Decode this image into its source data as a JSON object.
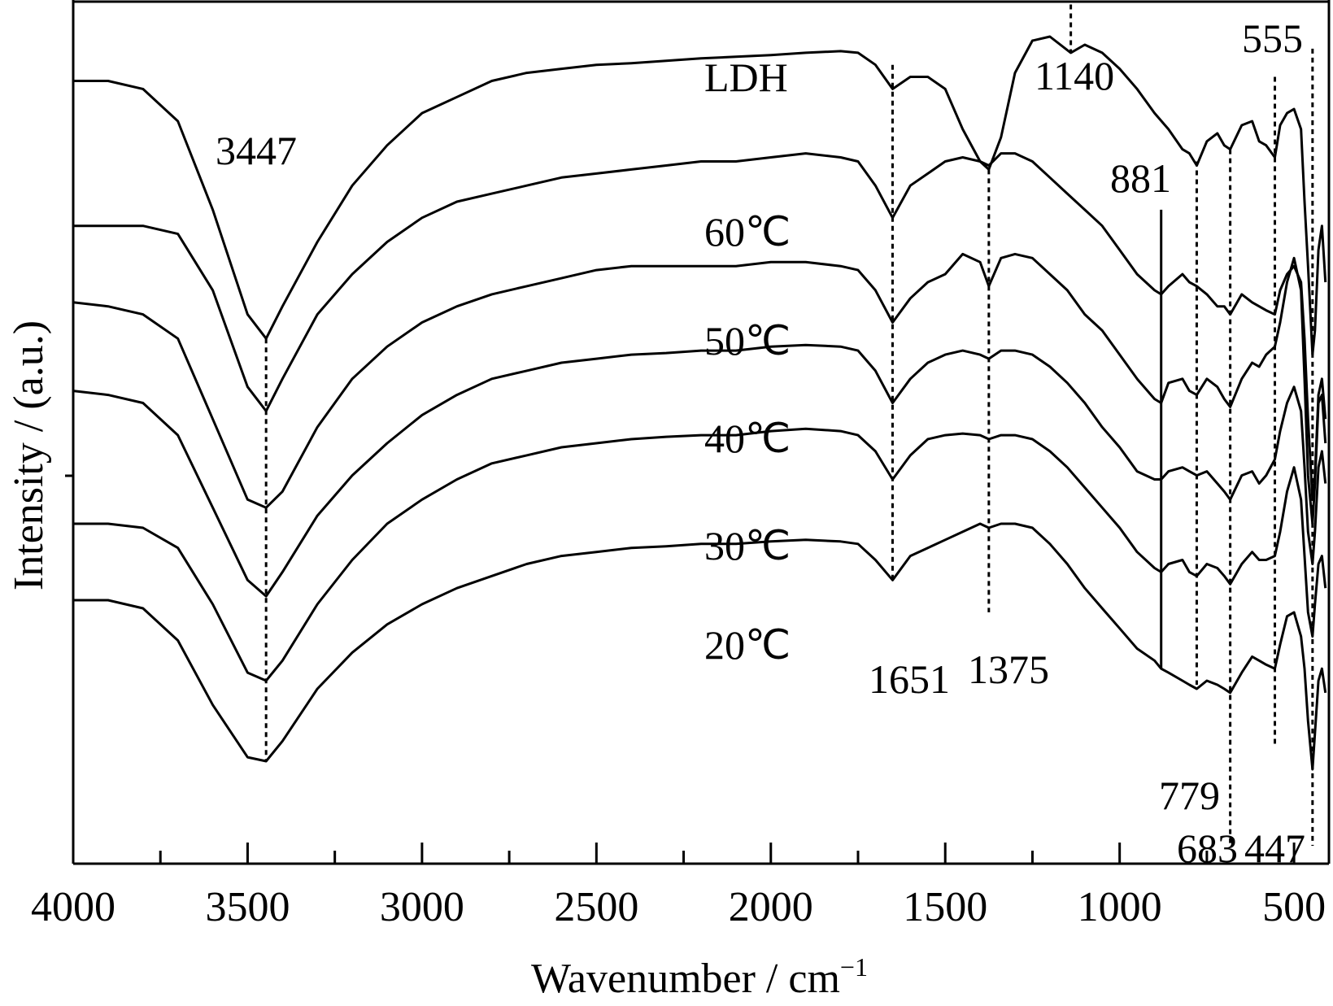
{
  "chart_data": {
    "type": "line",
    "xlabel": "Wavenumber / cm",
    "xlabel_sup": "−1",
    "ylabel": "Intensity / (a.u.)",
    "xlim": [
      4000,
      400
    ],
    "x_ticks": [
      "4000",
      "3500",
      "3000",
      "2500",
      "2000",
      "1500",
      "1000",
      "500"
    ],
    "x_tick_values": [
      4000,
      3500,
      3000,
      2500,
      2000,
      1500,
      1000,
      500
    ],
    "y_units": "a.u. (curves vertically offset)",
    "series": [
      {
        "name": "LDH",
        "x": [
          4000,
          3900,
          3800,
          3700,
          3600,
          3500,
          3447,
          3400,
          3300,
          3200,
          3100,
          3000,
          2900,
          2800,
          2700,
          2600,
          2500,
          2400,
          2300,
          2200,
          2100,
          2000,
          1900,
          1800,
          1750,
          1700,
          1651,
          1600,
          1550,
          1500,
          1450,
          1400,
          1375,
          1340,
          1300,
          1250,
          1200,
          1140,
          1100,
          1050,
          1000,
          950,
          900,
          860,
          820,
          800,
          779,
          750,
          720,
          700,
          683,
          650,
          620,
          600,
          580,
          555,
          540,
          520,
          500,
          480,
          470,
          460,
          447,
          440,
          430,
          420,
          410
        ],
        "y": [
          9.5,
          9.5,
          9.4,
          9.0,
          7.9,
          6.6,
          6.3,
          6.7,
          7.5,
          8.2,
          8.7,
          9.1,
          9.3,
          9.5,
          9.6,
          9.65,
          9.7,
          9.72,
          9.75,
          9.78,
          9.8,
          9.82,
          9.85,
          9.87,
          9.85,
          9.7,
          9.4,
          9.55,
          9.55,
          9.4,
          8.9,
          8.5,
          8.4,
          8.8,
          9.6,
          10.0,
          10.05,
          9.85,
          9.95,
          9.85,
          9.65,
          9.4,
          9.1,
          8.9,
          8.65,
          8.6,
          8.45,
          8.75,
          8.85,
          8.7,
          8.65,
          8.95,
          9.0,
          8.75,
          8.7,
          8.55,
          8.95,
          9.1,
          9.15,
          8.9,
          8.0,
          7.2,
          6.1,
          6.4,
          7.4,
          7.7,
          7.0
        ]
      },
      {
        "name": "60℃",
        "x": [
          4000,
          3900,
          3800,
          3700,
          3600,
          3500,
          3447,
          3400,
          3300,
          3200,
          3100,
          3000,
          2900,
          2800,
          2700,
          2600,
          2500,
          2400,
          2300,
          2200,
          2100,
          2000,
          1900,
          1800,
          1750,
          1700,
          1651,
          1600,
          1550,
          1500,
          1450,
          1400,
          1375,
          1340,
          1300,
          1250,
          1200,
          1150,
          1100,
          1050,
          1000,
          950,
          900,
          881,
          860,
          820,
          800,
          779,
          750,
          720,
          700,
          683,
          650,
          620,
          600,
          580,
          555,
          540,
          520,
          500,
          480,
          470,
          460,
          447,
          440,
          430,
          420,
          410
        ],
        "y": [
          7.7,
          7.7,
          7.7,
          7.6,
          6.9,
          5.7,
          5.4,
          5.8,
          6.6,
          7.1,
          7.5,
          7.8,
          8.0,
          8.1,
          8.2,
          8.3,
          8.35,
          8.4,
          8.45,
          8.5,
          8.5,
          8.55,
          8.6,
          8.55,
          8.5,
          8.2,
          7.8,
          8.2,
          8.35,
          8.5,
          8.55,
          8.5,
          8.45,
          8.6,
          8.6,
          8.5,
          8.3,
          8.1,
          7.9,
          7.7,
          7.4,
          7.1,
          6.9,
          6.85,
          6.95,
          7.1,
          7.0,
          6.95,
          6.85,
          6.7,
          6.7,
          6.6,
          6.85,
          6.75,
          6.7,
          6.65,
          6.6,
          6.9,
          7.1,
          7.2,
          7.0,
          6.3,
          5.3,
          4.3,
          4.6,
          5.6,
          5.8,
          5.3
        ]
      },
      {
        "name": "50℃",
        "x": [
          4000,
          3900,
          3800,
          3700,
          3600,
          3500,
          3447,
          3400,
          3300,
          3200,
          3100,
          3000,
          2900,
          2800,
          2700,
          2600,
          2500,
          2400,
          2300,
          2200,
          2100,
          2000,
          1900,
          1800,
          1750,
          1700,
          1651,
          1600,
          1550,
          1500,
          1450,
          1400,
          1375,
          1340,
          1300,
          1250,
          1200,
          1150,
          1100,
          1050,
          1000,
          950,
          900,
          881,
          860,
          820,
          800,
          779,
          750,
          720,
          700,
          683,
          650,
          620,
          600,
          580,
          555,
          540,
          520,
          500,
          480,
          470,
          460,
          447,
          440,
          430,
          420,
          410
        ],
        "y": [
          6.75,
          6.7,
          6.6,
          6.3,
          5.3,
          4.3,
          4.2,
          4.4,
          5.2,
          5.8,
          6.2,
          6.5,
          6.7,
          6.85,
          6.95,
          7.05,
          7.15,
          7.2,
          7.2,
          7.2,
          7.2,
          7.25,
          7.25,
          7.2,
          7.15,
          6.9,
          6.5,
          6.8,
          7.0,
          7.1,
          7.35,
          7.25,
          6.95,
          7.3,
          7.35,
          7.3,
          7.1,
          6.9,
          6.6,
          6.4,
          6.1,
          5.8,
          5.55,
          5.5,
          5.75,
          5.8,
          5.65,
          5.6,
          5.8,
          5.7,
          5.55,
          5.45,
          5.8,
          6.0,
          5.95,
          6.1,
          6.2,
          6.5,
          7.0,
          7.3,
          6.9,
          5.8,
          4.6,
          4.0,
          4.5,
          5.5,
          5.6,
          5.0
        ]
      },
      {
        "name": "40℃",
        "x": [
          4000,
          3900,
          3800,
          3700,
          3600,
          3500,
          3447,
          3400,
          3300,
          3200,
          3100,
          3000,
          2900,
          2800,
          2700,
          2600,
          2500,
          2400,
          2300,
          2200,
          2100,
          2000,
          1900,
          1800,
          1750,
          1700,
          1651,
          1600,
          1550,
          1500,
          1450,
          1400,
          1375,
          1340,
          1300,
          1250,
          1200,
          1150,
          1100,
          1050,
          1000,
          950,
          900,
          881,
          860,
          820,
          800,
          779,
          750,
          720,
          700,
          683,
          650,
          620,
          600,
          580,
          555,
          540,
          520,
          500,
          480,
          470,
          460,
          447,
          440,
          430,
          420,
          410
        ],
        "y": [
          5.65,
          5.6,
          5.5,
          5.1,
          4.2,
          3.3,
          3.1,
          3.4,
          4.1,
          4.6,
          5.0,
          5.35,
          5.6,
          5.8,
          5.9,
          6.0,
          6.05,
          6.1,
          6.12,
          6.15,
          6.15,
          6.2,
          6.22,
          6.2,
          6.15,
          5.9,
          5.5,
          5.8,
          6.0,
          6.1,
          6.15,
          6.1,
          6.05,
          6.15,
          6.15,
          6.1,
          5.95,
          5.75,
          5.5,
          5.2,
          4.95,
          4.65,
          4.55,
          4.55,
          4.65,
          4.7,
          4.65,
          4.6,
          4.65,
          4.5,
          4.4,
          4.3,
          4.6,
          4.65,
          4.5,
          4.6,
          4.8,
          5.15,
          5.5,
          5.7,
          5.4,
          4.7,
          3.9,
          3.5,
          3.9,
          4.7,
          4.9,
          4.5
        ]
      },
      {
        "name": "30℃",
        "x": [
          4000,
          3900,
          3800,
          3700,
          3600,
          3500,
          3447,
          3400,
          3300,
          3200,
          3100,
          3000,
          2900,
          2800,
          2700,
          2600,
          2500,
          2400,
          2300,
          2200,
          2100,
          2000,
          1900,
          1800,
          1750,
          1700,
          1651,
          1600,
          1550,
          1500,
          1450,
          1400,
          1375,
          1340,
          1300,
          1250,
          1200,
          1150,
          1100,
          1050,
          1000,
          950,
          900,
          881,
          860,
          820,
          800,
          779,
          750,
          720,
          700,
          683,
          650,
          620,
          600,
          580,
          555,
          540,
          520,
          500,
          480,
          470,
          460,
          447,
          440,
          430,
          420,
          410
        ],
        "y": [
          4.0,
          4.0,
          3.95,
          3.7,
          3.0,
          2.15,
          2.05,
          2.3,
          3.0,
          3.55,
          4.0,
          4.3,
          4.55,
          4.75,
          4.85,
          4.95,
          5.0,
          5.05,
          5.08,
          5.1,
          5.1,
          5.15,
          5.18,
          5.15,
          5.1,
          4.9,
          4.55,
          4.85,
          5.05,
          5.1,
          5.12,
          5.1,
          5.05,
          5.1,
          5.1,
          5.05,
          4.9,
          4.7,
          4.45,
          4.2,
          3.95,
          3.65,
          3.45,
          3.4,
          3.5,
          3.55,
          3.4,
          3.35,
          3.5,
          3.45,
          3.35,
          3.25,
          3.5,
          3.65,
          3.55,
          3.55,
          3.6,
          3.9,
          4.4,
          4.7,
          4.3,
          3.6,
          2.9,
          2.6,
          3.0,
          3.5,
          3.6,
          3.2
        ]
      },
      {
        "name": "20℃",
        "x": [
          4000,
          3900,
          3800,
          3700,
          3600,
          3500,
          3447,
          3400,
          3300,
          3200,
          3100,
          3000,
          2900,
          2800,
          2700,
          2600,
          2500,
          2400,
          2300,
          2200,
          2100,
          2000,
          1900,
          1800,
          1750,
          1700,
          1651,
          1600,
          1550,
          1500,
          1450,
          1400,
          1375,
          1340,
          1300,
          1250,
          1200,
          1150,
          1100,
          1050,
          1000,
          950,
          900,
          881,
          860,
          820,
          800,
          779,
          750,
          720,
          700,
          683,
          650,
          620,
          600,
          580,
          555,
          540,
          520,
          500,
          480,
          470,
          460,
          447,
          440,
          430,
          420,
          410
        ],
        "y": [
          3.05,
          3.05,
          2.95,
          2.55,
          1.75,
          1.1,
          1.05,
          1.3,
          1.95,
          2.4,
          2.75,
          3.0,
          3.2,
          3.35,
          3.5,
          3.6,
          3.65,
          3.7,
          3.72,
          3.75,
          3.75,
          3.78,
          3.8,
          3.78,
          3.75,
          3.55,
          3.3,
          3.6,
          3.7,
          3.8,
          3.9,
          4.0,
          3.95,
          4.0,
          4.0,
          3.95,
          3.75,
          3.5,
          3.2,
          2.95,
          2.7,
          2.45,
          2.3,
          2.2,
          2.15,
          2.05,
          2.0,
          1.95,
          2.05,
          2.0,
          1.95,
          1.9,
          2.15,
          2.35,
          2.3,
          2.25,
          2.2,
          2.5,
          2.85,
          2.9,
          2.6,
          2.2,
          1.55,
          0.95,
          1.4,
          2.05,
          2.2,
          1.9
        ]
      }
    ],
    "series_labels": [
      "LDH",
      "60℃",
      "50℃",
      "40℃",
      "30℃",
      "20℃"
    ],
    "peak_markers": [
      {
        "label": "3447",
        "x": 3447,
        "style": "dashed"
      },
      {
        "label": "1651",
        "x": 1651,
        "style": "dashed"
      },
      {
        "label": "1375",
        "x": 1375,
        "style": "dashed"
      },
      {
        "label": "1140",
        "x": 1140,
        "style": "dashed"
      },
      {
        "label": "881",
        "x": 881,
        "style": "solid"
      },
      {
        "label": "779",
        "x": 779,
        "style": "dashed"
      },
      {
        "label": "683",
        "x": 683,
        "style": "dashed"
      },
      {
        "label": "555",
        "x": 555,
        "style": "dashed"
      },
      {
        "label": "447",
        "x": 447,
        "style": "dashed"
      }
    ],
    "grid": false,
    "legend": "inline labels"
  }
}
